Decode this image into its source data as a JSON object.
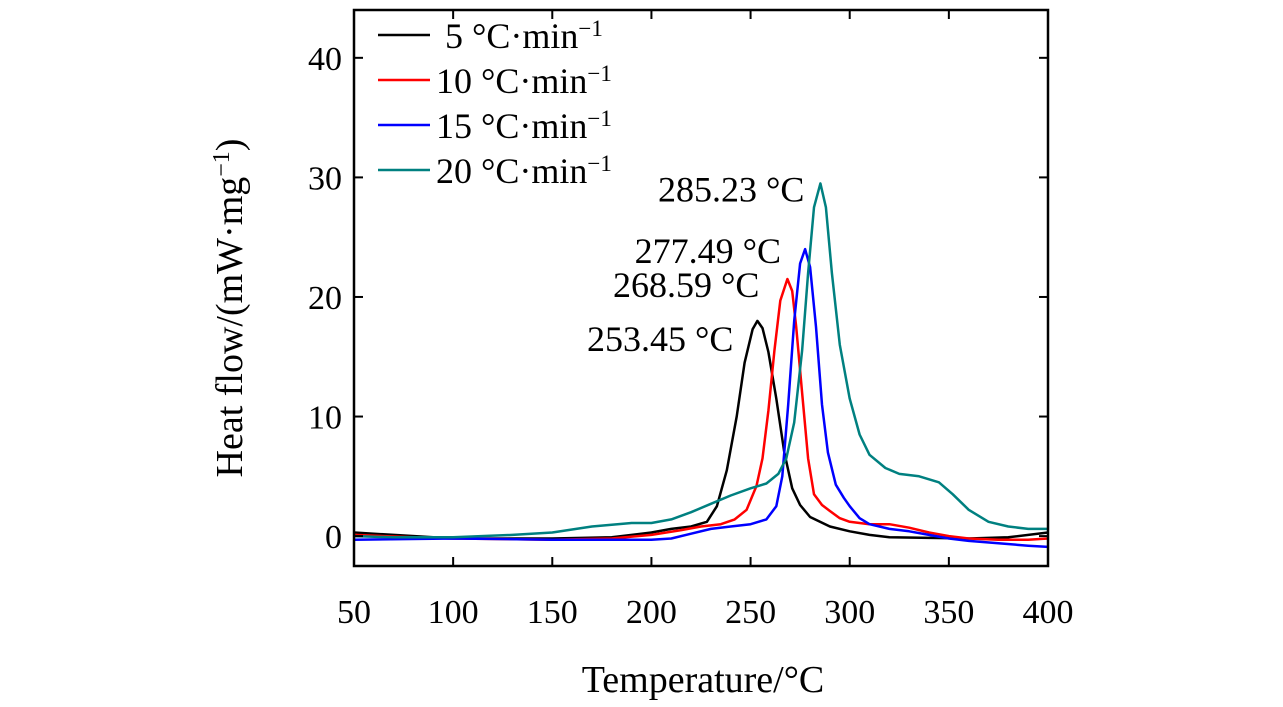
{
  "chart_data": {
    "type": "line",
    "xlabel": "Temperature/°C",
    "ylabel": "Heat flow/(mW·mg",
    "ylabel_sup": "−1",
    "ylabel_close": ")",
    "xlim": [
      50,
      400
    ],
    "ylim": [
      -2.5,
      44
    ],
    "xticks": [
      50,
      100,
      150,
      200,
      250,
      300,
      350,
      400
    ],
    "yticks": [
      0,
      10,
      20,
      30,
      40
    ],
    "legend_position": "top-left",
    "series": [
      {
        "name": " 5 °C·min",
        "name_sup": "−1",
        "color": "#000000",
        "points": [
          [
            50,
            0.3
          ],
          [
            70,
            0.1
          ],
          [
            90,
            -0.1
          ],
          [
            110,
            -0.2
          ],
          [
            150,
            -0.2
          ],
          [
            180,
            -0.1
          ],
          [
            200,
            0.3
          ],
          [
            210,
            0.6
          ],
          [
            220,
            0.8
          ],
          [
            228,
            1.2
          ],
          [
            233,
            2.5
          ],
          [
            238,
            5.5
          ],
          [
            243,
            10
          ],
          [
            247,
            14.5
          ],
          [
            251,
            17.3
          ],
          [
            253.45,
            18
          ],
          [
            256,
            17.4
          ],
          [
            259,
            15.4
          ],
          [
            263,
            11.5
          ],
          [
            267,
            7
          ],
          [
            271,
            4
          ],
          [
            275,
            2.6
          ],
          [
            280,
            1.6
          ],
          [
            290,
            0.8
          ],
          [
            300,
            0.4
          ],
          [
            310,
            0.1
          ],
          [
            320,
            -0.1
          ],
          [
            340,
            -0.15
          ],
          [
            360,
            -0.2
          ],
          [
            380,
            -0.1
          ],
          [
            400,
            0.3
          ]
        ]
      },
      {
        "name": "10 °C·min",
        "name_sup": "−1",
        "color": "#ff0000",
        "points": [
          [
            50,
            0.1
          ],
          [
            80,
            -0.1
          ],
          [
            100,
            -0.2
          ],
          [
            150,
            -0.3
          ],
          [
            180,
            -0.2
          ],
          [
            200,
            0.1
          ],
          [
            215,
            0.5
          ],
          [
            225,
            0.8
          ],
          [
            235,
            1.0
          ],
          [
            242,
            1.4
          ],
          [
            248,
            2.2
          ],
          [
            253,
            4.2
          ],
          [
            256,
            6.5
          ],
          [
            259,
            10.5
          ],
          [
            262,
            15.5
          ],
          [
            265,
            19.7
          ],
          [
            268.59,
            21.5
          ],
          [
            271,
            20.5
          ],
          [
            273,
            17.5
          ],
          [
            276,
            12
          ],
          [
            279,
            6.5
          ],
          [
            282,
            3.5
          ],
          [
            286,
            2.6
          ],
          [
            290,
            2.1
          ],
          [
            295,
            1.5
          ],
          [
            300,
            1.2
          ],
          [
            310,
            1.0
          ],
          [
            320,
            1.0
          ],
          [
            330,
            0.7
          ],
          [
            340,
            0.3
          ],
          [
            350,
            0.0
          ],
          [
            360,
            -0.2
          ],
          [
            375,
            -0.3
          ],
          [
            390,
            -0.3
          ],
          [
            400,
            -0.2
          ]
        ]
      },
      {
        "name": "15 °C·min",
        "name_sup": "−1",
        "color": "#0000ff",
        "points": [
          [
            50,
            -0.3
          ],
          [
            100,
            -0.2
          ],
          [
            150,
            -0.3
          ],
          [
            200,
            -0.3
          ],
          [
            210,
            -0.2
          ],
          [
            220,
            0.2
          ],
          [
            230,
            0.6
          ],
          [
            240,
            0.8
          ],
          [
            250,
            1.0
          ],
          [
            258,
            1.4
          ],
          [
            263,
            2.5
          ],
          [
            266,
            5
          ],
          [
            269,
            11
          ],
          [
            272,
            18
          ],
          [
            275,
            22.8
          ],
          [
            277.49,
            24
          ],
          [
            280,
            22.5
          ],
          [
            283,
            17.5
          ],
          [
            286,
            11
          ],
          [
            289,
            7
          ],
          [
            293,
            4.3
          ],
          [
            297,
            3.2
          ],
          [
            300,
            2.5
          ],
          [
            305,
            1.5
          ],
          [
            310,
            1.0
          ],
          [
            320,
            0.6
          ],
          [
            330,
            0.4
          ],
          [
            340,
            0.1
          ],
          [
            350,
            -0.2
          ],
          [
            360,
            -0.4
          ],
          [
            375,
            -0.6
          ],
          [
            390,
            -0.8
          ],
          [
            400,
            -0.9
          ]
        ]
      },
      {
        "name": "20 °C·min",
        "name_sup": "−1",
        "color": "#008080",
        "points": [
          [
            50,
            0.0
          ],
          [
            70,
            -0.1
          ],
          [
            100,
            -0.1
          ],
          [
            130,
            0.1
          ],
          [
            150,
            0.3
          ],
          [
            170,
            0.8
          ],
          [
            190,
            1.1
          ],
          [
            200,
            1.1
          ],
          [
            210,
            1.4
          ],
          [
            220,
            2.0
          ],
          [
            230,
            2.7
          ],
          [
            240,
            3.4
          ],
          [
            250,
            4.0
          ],
          [
            258,
            4.4
          ],
          [
            264,
            5.2
          ],
          [
            268,
            6.5
          ],
          [
            272,
            9.5
          ],
          [
            276,
            15.5
          ],
          [
            279,
            22
          ],
          [
            282,
            27.5
          ],
          [
            285.23,
            29.5
          ],
          [
            288,
            27.5
          ],
          [
            291,
            22
          ],
          [
            295,
            16
          ],
          [
            300,
            11.5
          ],
          [
            305,
            8.5
          ],
          [
            310,
            6.8
          ],
          [
            318,
            5.7
          ],
          [
            325,
            5.2
          ],
          [
            335,
            5.0
          ],
          [
            345,
            4.5
          ],
          [
            352,
            3.5
          ],
          [
            360,
            2.2
          ],
          [
            370,
            1.2
          ],
          [
            380,
            0.8
          ],
          [
            390,
            0.6
          ],
          [
            400,
            0.6
          ]
        ]
      }
    ],
    "annotations": [
      {
        "text": "285.23 °C",
        "x": 285.23,
        "y": 29.5
      },
      {
        "text": "277.49 °C",
        "x": 277.49,
        "y": 24
      },
      {
        "text": "268.59 °C",
        "x": 268.59,
        "y": 21.5
      },
      {
        "text": "253.45 °C",
        "x": 253.45,
        "y": 18
      }
    ]
  }
}
